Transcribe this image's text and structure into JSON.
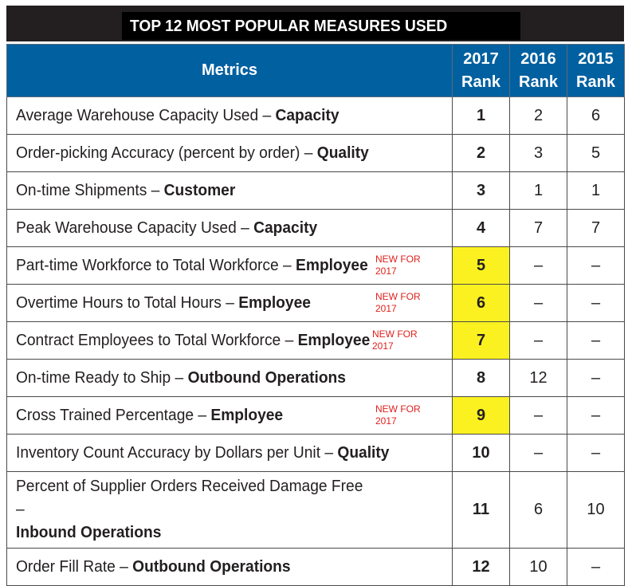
{
  "title": "TOP 12 MOST POPULAR MEASURES USED",
  "header": {
    "metrics": "Metrics",
    "rank_2017": "2017 Rank",
    "rank_2016": "2016 Rank",
    "rank_2015": "2015 Rank"
  },
  "rows": [
    {
      "metric": "Average Warehouse Capacity Used – ",
      "category": "Capacity",
      "new": "",
      "r2017": "1",
      "r2016": "2",
      "r2015": "6"
    },
    {
      "metric": "Order-picking Accuracy (percent by order) – ",
      "category": "Quality",
      "new": "",
      "r2017": "2",
      "r2016": "3",
      "r2015": "5"
    },
    {
      "metric": "On-time Shipments – ",
      "category": "Customer",
      "new": "",
      "r2017": "3",
      "r2016": "1",
      "r2015": "1"
    },
    {
      "metric": "Peak Warehouse Capacity Used – ",
      "category": "Capacity",
      "new": "",
      "r2017": "4",
      "r2016": "7",
      "r2015": "7"
    },
    {
      "metric": "Part-time Workforce to Total Workforce – ",
      "category": "Employee",
      "new": "NEW FOR 2017",
      "r2017": "5",
      "r2016": "–",
      "r2015": "–"
    },
    {
      "metric": "Overtime Hours to Total Hours – ",
      "category": "Employee",
      "new": "NEW FOR 2017",
      "r2017": "6",
      "r2016": "–",
      "r2015": "–"
    },
    {
      "metric": "Contract Employees to Total Workforce – ",
      "category": "Employee",
      "new": "NEW FOR 2017",
      "r2017": "7",
      "r2016": "–",
      "r2015": "–"
    },
    {
      "metric": "On-time Ready to Ship – ",
      "category": "Outbound Operations",
      "new": "",
      "r2017": "8",
      "r2016": "12",
      "r2015": "–"
    },
    {
      "metric": "Cross Trained Percentage – ",
      "category": "Employee",
      "new": "NEW FOR 2017",
      "r2017": "9",
      "r2016": "–",
      "r2015": "–"
    },
    {
      "metric": "Inventory Count Accuracy by Dollars per Unit – ",
      "category": "Quality",
      "new": "",
      "r2017": "10",
      "r2016": "–",
      "r2015": "–"
    },
    {
      "metric": "Percent of Supplier Orders Received Damage Free – ",
      "category": "Inbound Operations",
      "new": "",
      "r2017": "11",
      "r2016": "6",
      "r2015": "10"
    },
    {
      "metric": "Order Fill Rate – ",
      "category": "Outbound Operations",
      "new": "",
      "r2017": "12",
      "r2016": "10",
      "r2015": "–"
    }
  ],
  "colors": {
    "header_bg": "#0060a0",
    "highlight": "#fbf120",
    "new_tag": "#e0201c",
    "title_bg": "#231f20"
  }
}
